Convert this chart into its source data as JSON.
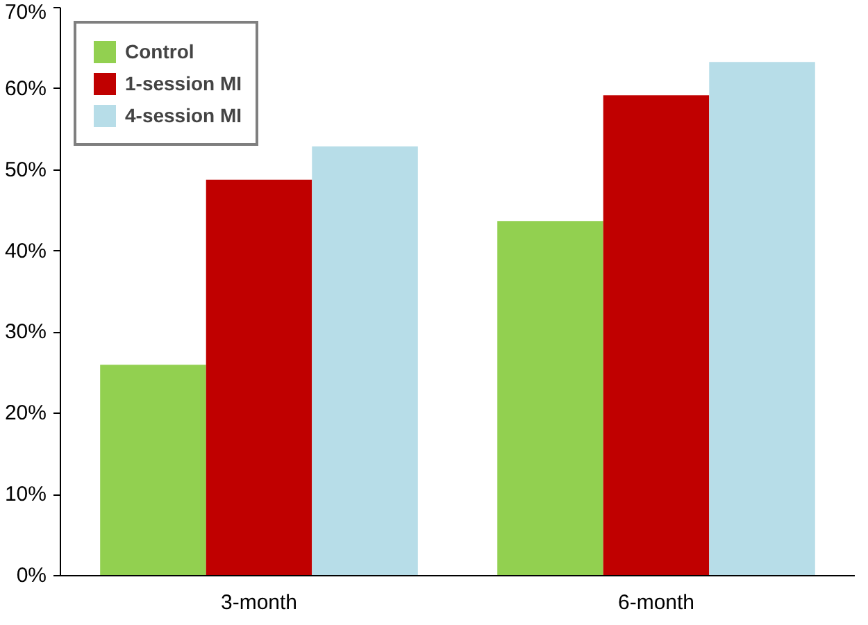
{
  "chart_data": {
    "type": "bar",
    "categories": [
      "3-month",
      "6-month"
    ],
    "series": [
      {
        "name": "Control",
        "color": "#92d050",
        "values": [
          26,
          43.7
        ]
      },
      {
        "name": "1-session MI",
        "color": "#c00000",
        "values": [
          48.8,
          59.2
        ]
      },
      {
        "name": "4-session MI",
        "color": "#b7dde8",
        "values": [
          52.9,
          63.3
        ]
      }
    ],
    "ylim": [
      0,
      70
    ],
    "yticks": [
      {
        "value": 0,
        "label": "0%"
      },
      {
        "value": 10,
        "label": "10%"
      },
      {
        "value": 20,
        "label": "20%"
      },
      {
        "value": 30,
        "label": "30%"
      },
      {
        "value": 40,
        "label": "40%"
      },
      {
        "value": 50,
        "label": "50%"
      },
      {
        "value": 60,
        "label": "60%"
      },
      {
        "value": 70,
        "label": "70%"
      }
    ],
    "grid": false,
    "legend": "top left"
  }
}
